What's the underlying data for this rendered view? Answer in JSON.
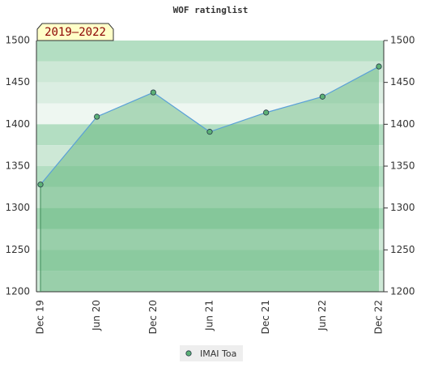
{
  "chart_data": {
    "type": "line",
    "title": "WOF ratinglist",
    "subtitle": "2019–2022",
    "categories": [
      "Dec 19",
      "Jun 20",
      "Dec 20",
      "Jun 21",
      "Dec 21",
      "Jun 22",
      "Dec 22"
    ],
    "series": [
      {
        "name": "IMAI Toa",
        "color": "#5cb176",
        "values": [
          1328,
          1409,
          1438,
          1391,
          1414,
          1433,
          1469
        ]
      }
    ],
    "ylim": [
      1200,
      1500
    ],
    "yticks": [
      1200,
      1250,
      1300,
      1350,
      1400,
      1450,
      1500
    ]
  }
}
